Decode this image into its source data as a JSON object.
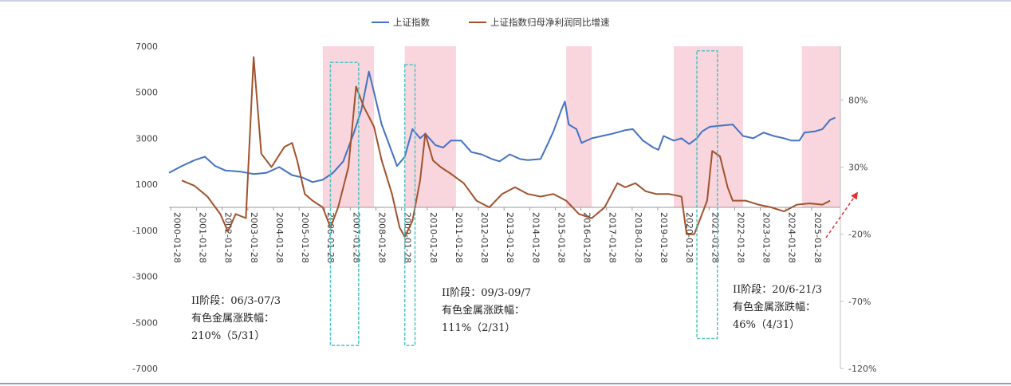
{
  "chart_data": {
    "type": "line",
    "title": "",
    "legend": {
      "position": "top-center"
    },
    "series": [
      {
        "name": "上证指数",
        "axis": "left",
        "color": "#4472c4",
        "points": [
          [
            2000.0,
            1500
          ],
          [
            2000.5,
            1800
          ],
          [
            2001.0,
            2050
          ],
          [
            2001.4,
            2200
          ],
          [
            2001.8,
            1800
          ],
          [
            2002.2,
            1600
          ],
          [
            2002.8,
            1550
          ],
          [
            2003.3,
            1450
          ],
          [
            2003.8,
            1500
          ],
          [
            2004.3,
            1750
          ],
          [
            2004.8,
            1400
          ],
          [
            2005.2,
            1300
          ],
          [
            2005.6,
            1100
          ],
          [
            2006.0,
            1200
          ],
          [
            2006.4,
            1500
          ],
          [
            2006.8,
            2000
          ],
          [
            2007.2,
            3200
          ],
          [
            2007.5,
            4200
          ],
          [
            2007.8,
            5900
          ],
          [
            2008.0,
            5000
          ],
          [
            2008.3,
            3600
          ],
          [
            2008.6,
            2700
          ],
          [
            2008.9,
            1800
          ],
          [
            2009.2,
            2200
          ],
          [
            2009.5,
            3400
          ],
          [
            2009.8,
            3000
          ],
          [
            2010.0,
            3200
          ],
          [
            2010.4,
            2700
          ],
          [
            2010.7,
            2600
          ],
          [
            2011.0,
            2900
          ],
          [
            2011.4,
            2900
          ],
          [
            2011.8,
            2400
          ],
          [
            2012.2,
            2300
          ],
          [
            2012.6,
            2100
          ],
          [
            2012.9,
            2000
          ],
          [
            2013.3,
            2300
          ],
          [
            2013.7,
            2100
          ],
          [
            2014.0,
            2050
          ],
          [
            2014.5,
            2100
          ],
          [
            2014.8,
            2800
          ],
          [
            2015.0,
            3300
          ],
          [
            2015.3,
            4200
          ],
          [
            2015.45,
            4600
          ],
          [
            2015.6,
            3600
          ],
          [
            2015.9,
            3400
          ],
          [
            2016.1,
            2800
          ],
          [
            2016.5,
            3000
          ],
          [
            2016.9,
            3100
          ],
          [
            2017.3,
            3200
          ],
          [
            2017.8,
            3350
          ],
          [
            2018.1,
            3400
          ],
          [
            2018.5,
            2900
          ],
          [
            2018.9,
            2600
          ],
          [
            2019.1,
            2500
          ],
          [
            2019.3,
            3100
          ],
          [
            2019.7,
            2900
          ],
          [
            2020.0,
            3000
          ],
          [
            2020.3,
            2750
          ],
          [
            2020.6,
            3000
          ],
          [
            2020.8,
            3300
          ],
          [
            2021.1,
            3500
          ],
          [
            2021.5,
            3550
          ],
          [
            2022.0,
            3600
          ],
          [
            2022.4,
            3100
          ],
          [
            2022.8,
            3000
          ],
          [
            2023.2,
            3250
          ],
          [
            2023.6,
            3100
          ],
          [
            2024.0,
            3000
          ],
          [
            2024.3,
            2900
          ],
          [
            2024.6,
            2900
          ],
          [
            2024.8,
            3250
          ],
          [
            2025.2,
            3300
          ],
          [
            2025.5,
            3400
          ],
          [
            2025.8,
            3800
          ],
          [
            2026.0,
            3900
          ]
        ]
      },
      {
        "name": "上证指数归母净利润同比增速",
        "axis": "right",
        "color": "#a0522d",
        "points": [
          [
            2000.5,
            20
          ],
          [
            2001.0,
            16
          ],
          [
            2001.5,
            8
          ],
          [
            2002.0,
            -5
          ],
          [
            2002.3,
            -18
          ],
          [
            2002.6,
            -5
          ],
          [
            2003.0,
            -8
          ],
          [
            2003.3,
            112
          ],
          [
            2003.6,
            40
          ],
          [
            2004.0,
            30
          ],
          [
            2004.5,
            45
          ],
          [
            2004.8,
            48
          ],
          [
            2005.0,
            35
          ],
          [
            2005.3,
            10
          ],
          [
            2005.6,
            5
          ],
          [
            2006.0,
            0
          ],
          [
            2006.3,
            -15
          ],
          [
            2006.6,
            0
          ],
          [
            2007.0,
            30
          ],
          [
            2007.3,
            90
          ],
          [
            2007.6,
            75
          ],
          [
            2008.0,
            60
          ],
          [
            2008.3,
            35
          ],
          [
            2008.7,
            10
          ],
          [
            2009.0,
            -15
          ],
          [
            2009.2,
            -22
          ],
          [
            2009.5,
            -10
          ],
          [
            2009.8,
            20
          ],
          [
            2010.0,
            55
          ],
          [
            2010.3,
            35
          ],
          [
            2010.6,
            30
          ],
          [
            2011.0,
            25
          ],
          [
            2011.5,
            18
          ],
          [
            2012.0,
            5
          ],
          [
            2012.5,
            0
          ],
          [
            2013.0,
            10
          ],
          [
            2013.5,
            15
          ],
          [
            2014.0,
            10
          ],
          [
            2014.5,
            8
          ],
          [
            2015.0,
            10
          ],
          [
            2015.5,
            5
          ],
          [
            2016.0,
            -5
          ],
          [
            2016.5,
            -8
          ],
          [
            2017.0,
            0
          ],
          [
            2017.5,
            18
          ],
          [
            2017.8,
            15
          ],
          [
            2018.2,
            18
          ],
          [
            2018.6,
            12
          ],
          [
            2019.0,
            10
          ],
          [
            2019.5,
            10
          ],
          [
            2020.0,
            8
          ],
          [
            2020.2,
            -20
          ],
          [
            2020.5,
            -20
          ],
          [
            2020.8,
            -5
          ],
          [
            2021.0,
            5
          ],
          [
            2021.2,
            42
          ],
          [
            2021.5,
            38
          ],
          [
            2021.8,
            15
          ],
          [
            2022.0,
            5
          ],
          [
            2022.5,
            5
          ],
          [
            2023.0,
            2
          ],
          [
            2023.5,
            0
          ],
          [
            2024.0,
            -3
          ],
          [
            2024.5,
            2
          ],
          [
            2025.0,
            3
          ],
          [
            2025.5,
            2
          ],
          [
            2025.8,
            5
          ]
        ]
      }
    ],
    "left_axis": {
      "ticks": [
        7000,
        5000,
        3000,
        1000,
        -1000,
        -3000,
        -5000,
        -7000
      ],
      "ylim": [
        -7000,
        7000
      ]
    },
    "right_axis": {
      "ticks": [
        "80%",
        "30%",
        "-20%",
        "-70%",
        "-120%"
      ],
      "tick_values": [
        80,
        30,
        -20,
        -70,
        -120
      ],
      "ylim": [
        -120,
        120
      ]
    },
    "x_ticks": [
      "2000-01-28",
      "2001-01-28",
      "2002-01-28",
      "2003-01-28",
      "2004-01-28",
      "2005-01-28",
      "2006-01-28",
      "2007-01-28",
      "2008-01-28",
      "2009-01-28",
      "2010-01-28",
      "2011-01-28",
      "2012-01-28",
      "2013-01-28",
      "2014-01-28",
      "2015-01-28",
      "2016-01-28",
      "2017-01-28",
      "2018-01-28",
      "2019-01-28",
      "2020-01-28",
      "2021-01-28",
      "2022-01-28",
      "2023-01-28",
      "2024-01-28",
      "2025-01-28"
    ],
    "shaded_periods": [
      [
        2006.0,
        2008.0
      ],
      [
        2009.2,
        2011.2
      ],
      [
        2015.5,
        2016.5
      ],
      [
        2019.7,
        2022.4
      ],
      [
        2024.7,
        2026.2
      ]
    ],
    "highlight_boxes": [
      {
        "x": [
          2006.3,
          2007.4
        ],
        "y": [
          -6000,
          6300
        ]
      },
      {
        "x": [
          2009.2,
          2009.6
        ],
        "y": [
          -6000,
          6200
        ]
      },
      {
        "x": [
          2020.6,
          2021.4
        ],
        "y": [
          -5700,
          6800
        ]
      }
    ],
    "annotations": [
      {
        "lines": [
          "II阶段：06/3-07/3",
          "有色金属涨跌幅：",
          "210%（5/31）"
        ]
      },
      {
        "lines": [
          "II阶段：09/3-09/7",
          "有色金属涨跌幅：",
          "111%（2/31）"
        ]
      },
      {
        "lines": [
          "II阶段：20/6-21/3",
          "有色金属涨跌幅：",
          "46%（4/31）"
        ]
      }
    ],
    "shade_color": "#f9d6dd",
    "box_color": "#4fc3c3",
    "arrow_color": "#e03030"
  }
}
